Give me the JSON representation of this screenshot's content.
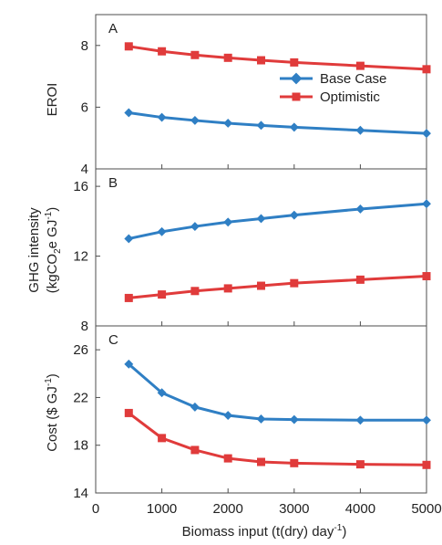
{
  "colors": {
    "base": "#2f7fc4",
    "optimistic": "#e03b3b",
    "axis": "#4d4d4d",
    "background": "#ffffff"
  },
  "legend": {
    "position": "top-right of panel A",
    "entries": [
      "Base Case",
      "Optimistic"
    ]
  },
  "shared_x": {
    "label_main": "Biomass input (t(dry) day",
    "label_sup": "-1",
    "label_end": ")",
    "ticks": [
      "0",
      "1000",
      "2000",
      "3000",
      "4000",
      "5000"
    ],
    "range": [
      0,
      5000
    ]
  },
  "chart_data": [
    {
      "type": "line",
      "panel": "A",
      "ylabel": "EROI",
      "ylim": [
        4,
        9
      ],
      "yticks": [
        "4",
        "6",
        "8"
      ],
      "x": [
        500,
        1000,
        1500,
        2000,
        2500,
        3000,
        4000,
        5000
      ],
      "series": [
        {
          "name": "Base Case",
          "marker": "diamond",
          "values": [
            5.82,
            5.67,
            5.57,
            5.48,
            5.41,
            5.35,
            5.25,
            5.15
          ]
        },
        {
          "name": "Optimistic",
          "marker": "square",
          "values": [
            7.97,
            7.81,
            7.69,
            7.6,
            7.52,
            7.45,
            7.34,
            7.23
          ]
        }
      ]
    },
    {
      "type": "line",
      "panel": "B",
      "ylabel_line1": "GHG intensity",
      "ylabel_line2_parts": [
        "(kgCO",
        "2",
        "e GJ",
        "-1",
        ")"
      ],
      "ylim": [
        8,
        17
      ],
      "yticks": [
        "8",
        "12",
        "16"
      ],
      "x": [
        500,
        1000,
        1500,
        2000,
        2500,
        3000,
        4000,
        5000
      ],
      "series": [
        {
          "name": "Base Case",
          "marker": "diamond",
          "values": [
            13.0,
            13.4,
            13.7,
            13.95,
            14.15,
            14.35,
            14.7,
            15.0
          ]
        },
        {
          "name": "Optimistic",
          "marker": "square",
          "values": [
            9.6,
            9.8,
            10.0,
            10.15,
            10.3,
            10.45,
            10.65,
            10.85
          ]
        }
      ]
    },
    {
      "type": "line",
      "panel": "C",
      "ylabel_parts": [
        "Cost ($ GJ",
        "-1",
        ")"
      ],
      "ylim": [
        14,
        28
      ],
      "yticks": [
        "14",
        "18",
        "22",
        "26"
      ],
      "x": [
        500,
        1000,
        1500,
        2000,
        2500,
        3000,
        4000,
        5000
      ],
      "series": [
        {
          "name": "Base Case",
          "marker": "diamond",
          "values": [
            24.8,
            22.4,
            21.2,
            20.5,
            20.2,
            20.15,
            20.1,
            20.1
          ]
        },
        {
          "name": "Optimistic",
          "marker": "square",
          "values": [
            20.7,
            18.6,
            17.6,
            16.9,
            16.6,
            16.5,
            16.4,
            16.35
          ]
        }
      ]
    }
  ]
}
